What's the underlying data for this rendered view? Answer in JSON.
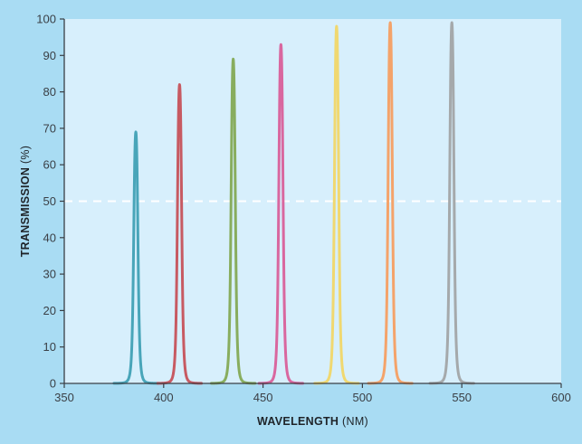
{
  "colors": {
    "background": "#a9dcf3",
    "plot_background": "#d7effc",
    "axis": "#3a3f45",
    "threshold_line": "#ffffff"
  },
  "chart_data": {
    "type": "line",
    "title": "",
    "xlabel_main": "WAVELENGTH",
    "xlabel_unit": " (NM)",
    "ylabel_main": "TRANSMISSION",
    "ylabel_unit": " (%)",
    "xlim": [
      350,
      600
    ],
    "ylim": [
      0,
      100
    ],
    "x_ticks": [
      350,
      400,
      450,
      500,
      550,
      600
    ],
    "y_ticks": [
      0,
      10,
      20,
      30,
      40,
      50,
      60,
      70,
      80,
      90,
      100
    ],
    "x_tick_labels": [
      "350",
      "400",
      "450",
      "500",
      "550",
      "600"
    ],
    "y_tick_labels": [
      "0",
      "10",
      "20",
      "30",
      "40",
      "50",
      "60",
      "70",
      "80",
      "90",
      "100"
    ],
    "grid": false,
    "threshold": 50,
    "series": [
      {
        "center": 386,
        "peak": 69,
        "color": "#48a5b9"
      },
      {
        "center": 408,
        "peak": 82,
        "color": "#c75a62"
      },
      {
        "center": 435,
        "peak": 89,
        "color": "#88ad5e"
      },
      {
        "center": 459,
        "peak": 93,
        "color": "#d9679f"
      },
      {
        "center": 487,
        "peak": 98,
        "color": "#f0d870"
      },
      {
        "center": 514,
        "peak": 99,
        "color": "#f4a36a"
      },
      {
        "center": 545,
        "peak": 99,
        "color": "#a5a9ab"
      }
    ]
  }
}
